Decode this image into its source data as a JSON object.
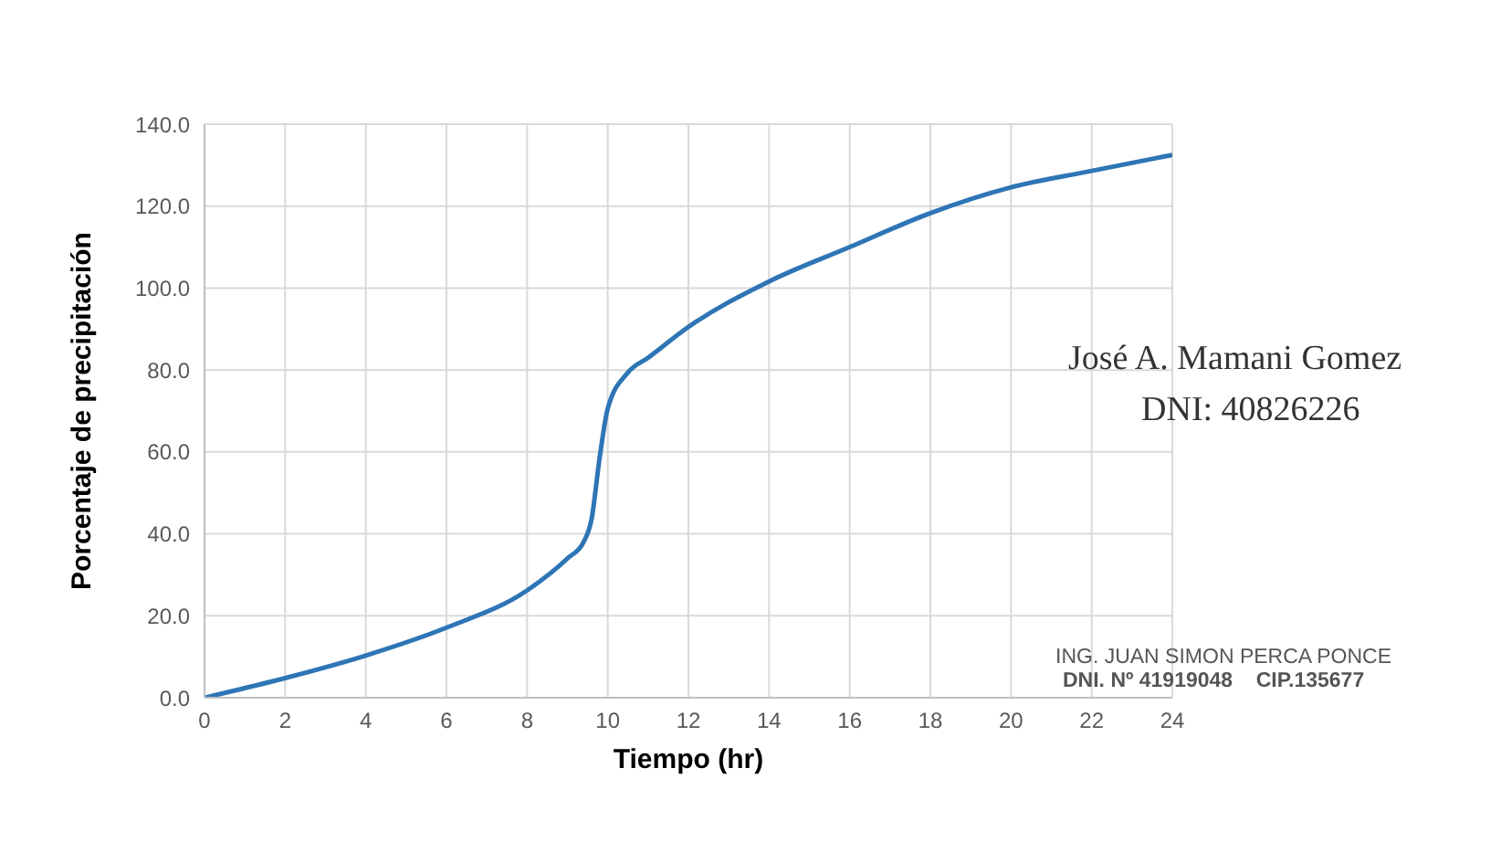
{
  "chart_data": {
    "type": "line",
    "xlabel": "Tiempo (hr)",
    "ylabel": "Porcentaje de precipitación",
    "x": [
      0,
      2,
      4,
      6,
      8,
      9,
      9.4,
      9.6,
      9.8,
      10,
      10.5,
      11,
      12,
      14,
      16,
      18,
      20,
      22,
      24
    ],
    "series": [
      {
        "color": "#2e75b6",
        "values": [
          0,
          4.8,
          10.3,
          17.1,
          26.2,
          34,
          38,
          43.7,
          58.7,
          70.6,
          79.4,
          83,
          90.5,
          101.6,
          110,
          118.3,
          124.6,
          128.6,
          132.5
        ]
      }
    ],
    "xlim": [
      0,
      24
    ],
    "xticks": [
      0,
      2,
      4,
      6,
      8,
      10,
      12,
      14,
      16,
      18,
      20,
      22,
      24
    ],
    "ylim": [
      0,
      140
    ],
    "yticks": [
      {
        "value": 0,
        "label": "0.0"
      },
      {
        "value": 20,
        "label": "20.0"
      },
      {
        "value": 40,
        "label": "40.0"
      },
      {
        "value": 60,
        "label": "60.0"
      },
      {
        "value": 80,
        "label": "80.0"
      },
      {
        "value": 100,
        "label": "100.0"
      },
      {
        "value": 120,
        "label": "120.0"
      },
      {
        "value": 140,
        "label": "140.0"
      }
    ],
    "grid": true,
    "marker": "none",
    "line_style": "solid",
    "annotations": [
      "José A. Mamani Gomez",
      "DNI: 40826226",
      "ING. JUAN SIMON PERCA PONCE",
      "DNI. Nº 41919048    CIP.135677"
    ]
  }
}
